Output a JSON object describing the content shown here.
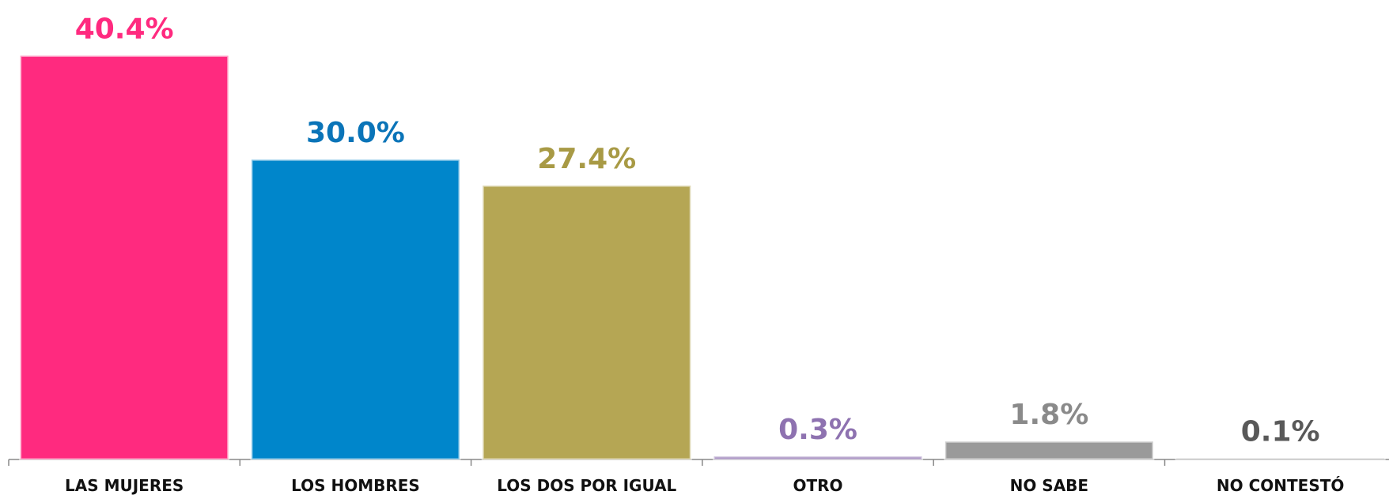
{
  "chart_data": {
    "type": "bar",
    "categories": [
      "LAS MUJERES",
      "LOS HOMBRES",
      "LOS DOS POR IGUAL",
      "OTRO",
      "NO SABE",
      "NO CONTESTÓ"
    ],
    "values": [
      40.4,
      30.0,
      27.4,
      0.3,
      1.8,
      0.1
    ],
    "value_labels": [
      "40.4%",
      "30.0%",
      "27.4%",
      "0.3%",
      "1.8%",
      "0.1%"
    ],
    "colors": [
      "#ff2a7f",
      "#0086cb",
      "#b5a654",
      "#8e72b0",
      "#9a9a9a",
      "#8a8a8a"
    ],
    "label_colors": [
      "#ff2a7f",
      "#0a74b8",
      "#a89a45",
      "#8e72b0",
      "#8a8a8a",
      "#595959"
    ]
  }
}
